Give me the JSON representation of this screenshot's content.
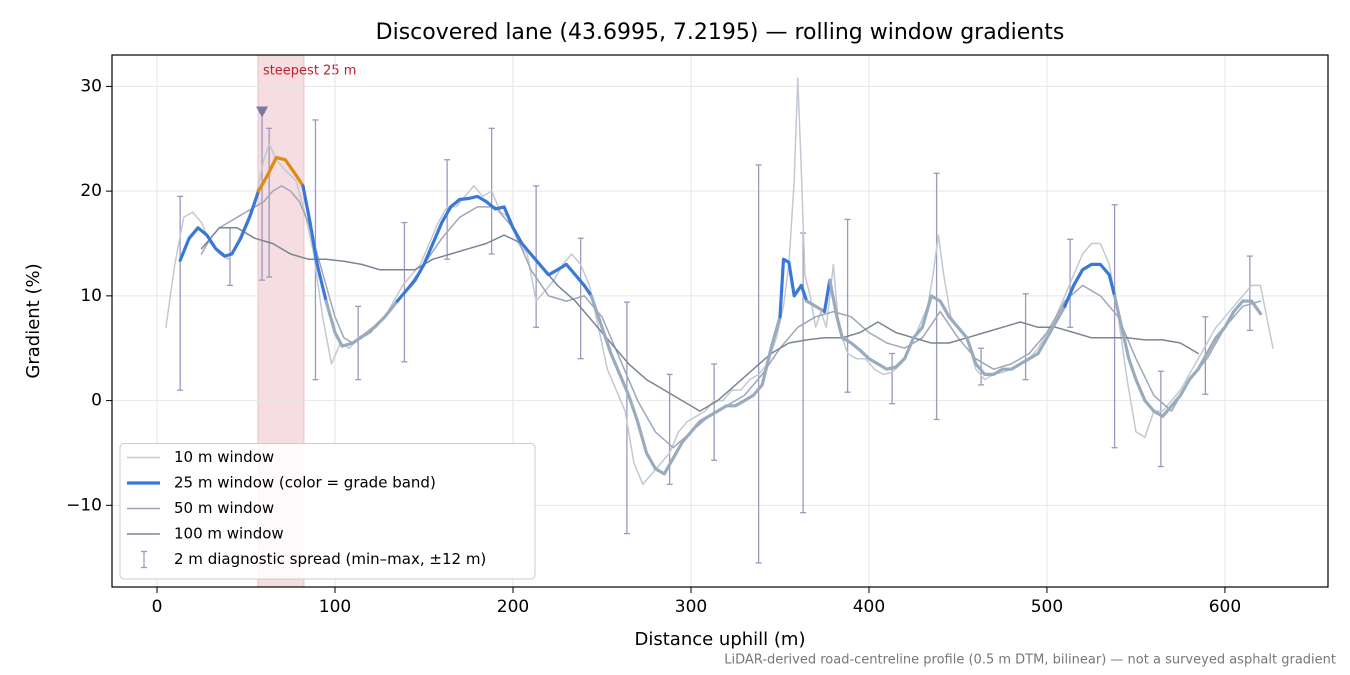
{
  "chart_data": {
    "type": "line",
    "title": "Discovered lane (43.6995, 7.2195) — rolling window gradients",
    "xlabel": "Distance uphill (m)",
    "ylabel": "Gradient (%)",
    "note": "LiDAR-derived road-centreline profile (0.5 m DTM, bilinear) — not a surveyed asphalt gradient",
    "xlim": [
      -25.3,
      657.9
    ],
    "ylim": [
      -17.8,
      33.0
    ],
    "xticks": [
      0,
      100,
      200,
      300,
      400,
      500,
      600
    ],
    "yticks": [
      {
        "value": -10,
        "label": "−10"
      },
      0,
      10,
      20,
      30
    ],
    "grid": true,
    "legend": "lower left",
    "highlight": {
      "label": "steepest 25 m",
      "x": [
        56.7,
        82.6
      ],
      "color": "#e8b4bc"
    },
    "marker": {
      "x": 59,
      "y": 27.6,
      "color": "#7a7aa0"
    },
    "series": [
      {
        "name": "10 m window",
        "color": "#c3c9d2",
        "width": 1.5,
        "x": [
          5,
          10,
          15,
          20,
          25,
          30,
          35,
          40,
          45,
          50,
          55,
          60,
          63,
          67,
          72,
          78,
          83,
          88,
          93,
          98,
          103,
          108,
          113,
          118,
          123,
          128,
          133,
          138,
          143,
          148,
          153,
          158,
          163,
          168,
          173,
          178,
          183,
          188,
          193,
          198,
          203,
          208,
          213,
          218,
          223,
          228,
          233,
          238,
          243,
          248,
          253,
          258,
          263,
          268,
          273,
          278,
          283,
          288,
          293,
          298,
          303,
          308,
          313,
          318,
          323,
          328,
          333,
          338,
          343,
          348,
          352,
          355,
          358,
          360,
          362,
          364,
          367,
          370,
          373,
          376,
          380,
          383,
          388,
          393,
          398,
          403,
          408,
          413,
          418,
          423,
          428,
          433,
          436,
          439,
          442,
          446,
          450,
          455,
          460,
          465,
          470,
          475,
          480,
          485,
          490,
          495,
          500,
          505,
          510,
          515,
          520,
          525,
          530,
          535,
          540,
          545,
          550,
          555,
          560,
          565,
          570,
          575,
          580,
          585,
          590,
          595,
          600,
          605,
          610,
          615,
          620,
          624,
          627
        ],
        "values": [
          7,
          13,
          17.5,
          18,
          17,
          15,
          14,
          13.5,
          15,
          17,
          19,
          23,
          24.5,
          23,
          22,
          21,
          18,
          14,
          8,
          3.5,
          5.5,
          5,
          6,
          6.5,
          7,
          8,
          9.5,
          11,
          12,
          13,
          15,
          17,
          18.5,
          18.5,
          19.5,
          20.5,
          19.5,
          20,
          18,
          17.5,
          15,
          14,
          9.5,
          10.5,
          11.5,
          13,
          14,
          13,
          11,
          7,
          3,
          1,
          -1,
          -6,
          -8,
          -7,
          -6,
          -5,
          -3,
          -2,
          -1.5,
          -1,
          0,
          0,
          1,
          1,
          2,
          2.5,
          3.5,
          6,
          9,
          13,
          21,
          30.8,
          22,
          12,
          10,
          7,
          8.5,
          7,
          13,
          7,
          4.5,
          4,
          4,
          3,
          2.5,
          2.7,
          3.5,
          5,
          7,
          9,
          12,
          15.8,
          12,
          8,
          7,
          6,
          3,
          2,
          2.5,
          2.7,
          3,
          3.5,
          4,
          5,
          6.5,
          8,
          10,
          12,
          14,
          15,
          15,
          13,
          8,
          2,
          -3,
          -3.5,
          -1,
          -1,
          0,
          1,
          2.5,
          4,
          5.5,
          7,
          8,
          9,
          10,
          11,
          11,
          7.5,
          5
        ]
      },
      {
        "name": "25 m window (color = grade band)",
        "color": "#3a78d8",
        "width": 3.2,
        "band_thresholds": [
          10,
          20
        ],
        "band_colors": [
          "#9aabbd",
          "#3a78d8",
          "#e08a10"
        ],
        "x": [
          13,
          18,
          23,
          28,
          33,
          38,
          42,
          47,
          52,
          57,
          62,
          67,
          72,
          77,
          82,
          86,
          90,
          95,
          100,
          104,
          110,
          116,
          122,
          128,
          135,
          140,
          145,
          150,
          155,
          160,
          165,
          170,
          175,
          180,
          185,
          190,
          195,
          200,
          205,
          210,
          215,
          220,
          225,
          230,
          235,
          240,
          244,
          250,
          255,
          260,
          265,
          270,
          275,
          280,
          285,
          290,
          295,
          300,
          305,
          310,
          315,
          320,
          325,
          330,
          335,
          340,
          345,
          350,
          352,
          355,
          358,
          362,
          365,
          370,
          375,
          378,
          382,
          385,
          390,
          395,
          400,
          405,
          410,
          415,
          420,
          425,
          430,
          435,
          440,
          445,
          450,
          455,
          460,
          465,
          470,
          475,
          480,
          485,
          490,
          495,
          500,
          505,
          510,
          515,
          520,
          525,
          530,
          535,
          538,
          542,
          546,
          550,
          555,
          560,
          565,
          570,
          575,
          580,
          585,
          590,
          595,
          600,
          605,
          610,
          615,
          620
        ],
        "values": [
          13.4,
          15.5,
          16.5,
          15.8,
          14.5,
          13.8,
          14,
          15.5,
          17.5,
          20,
          21.5,
          23.2,
          23,
          21.8,
          20.5,
          17,
          13,
          9.5,
          6.5,
          5.2,
          5.5,
          6.2,
          7,
          8,
          9.5,
          10.5,
          11.5,
          13,
          15,
          17,
          18.5,
          19.2,
          19.3,
          19.5,
          19,
          18.3,
          18.5,
          16.5,
          15,
          14,
          13,
          12,
          12.5,
          13,
          12,
          11,
          10,
          7,
          4.5,
          2.5,
          0.5,
          -2,
          -5,
          -6.5,
          -7,
          -5.5,
          -4,
          -3,
          -2,
          -1.5,
          -1,
          -0.5,
          -0.5,
          0,
          0.5,
          1.5,
          5,
          8,
          13.5,
          13.2,
          10,
          11,
          9.5,
          9,
          8.5,
          11.5,
          8,
          6,
          5.5,
          4.8,
          4,
          3.5,
          3,
          3.2,
          4,
          6,
          7,
          10,
          9.5,
          8,
          7,
          6,
          3.5,
          2.5,
          2.5,
          3,
          3,
          3.5,
          4,
          4.5,
          6,
          7.5,
          9,
          11,
          12.5,
          13,
          13,
          12,
          10,
          7,
          4,
          2,
          0,
          -1,
          -1.5,
          -0.5,
          0.5,
          2,
          3,
          4.5,
          6,
          7,
          8.5,
          9.5,
          9.5,
          8.3
        ]
      },
      {
        "name": "50 m window",
        "color": "#9ea6b8",
        "width": 1.5,
        "x": [
          25,
          30,
          35,
          40,
          45,
          50,
          55,
          60,
          65,
          70,
          75,
          80,
          85,
          90,
          95,
          100,
          105,
          110,
          115,
          120,
          125,
          130,
          140,
          150,
          160,
          170,
          180,
          190,
          200,
          210,
          220,
          230,
          240,
          250,
          260,
          270,
          280,
          290,
          300,
          310,
          320,
          330,
          340,
          350,
          360,
          370,
          380,
          390,
          400,
          410,
          420,
          430,
          440,
          450,
          460,
          470,
          480,
          490,
          500,
          510,
          520,
          530,
          540,
          550,
          560,
          570,
          580,
          590,
          600,
          610,
          620
        ],
        "values": [
          14,
          15.5,
          16.5,
          17,
          17.5,
          18,
          18.5,
          19,
          20,
          20.5,
          20,
          19,
          17,
          14,
          11,
          8,
          6,
          5.5,
          6,
          6.5,
          7.5,
          8.5,
          10.5,
          13,
          15.5,
          17.5,
          18.5,
          18.5,
          16.5,
          12.5,
          10,
          9.5,
          10,
          8,
          4,
          0,
          -3,
          -4.5,
          -3,
          -1.5,
          -0.5,
          0.5,
          2.5,
          5,
          7,
          8,
          8.5,
          8,
          6.5,
          5.5,
          5,
          6,
          8.5,
          6,
          4,
          3,
          3.5,
          4.5,
          6.5,
          9.5,
          11,
          10,
          8,
          4,
          0.5,
          -1,
          2,
          4,
          7,
          9,
          9.5
        ]
      },
      {
        "name": "100 m window",
        "color": "#7a8494",
        "width": 1.5,
        "x": [
          25,
          35,
          45,
          55,
          65,
          75,
          85,
          95,
          105,
          115,
          125,
          135,
          145,
          155,
          165,
          175,
          185,
          195,
          205,
          215,
          225,
          235,
          245,
          255,
          265,
          275,
          285,
          295,
          305,
          315,
          325,
          335,
          345,
          355,
          365,
          375,
          385,
          395,
          405,
          415,
          425,
          435,
          445,
          455,
          465,
          475,
          485,
          495,
          505,
          515,
          525,
          535,
          545,
          555,
          565,
          575,
          585
        ],
        "values": [
          14.5,
          16.5,
          16.5,
          15.5,
          15,
          14,
          13.5,
          13.5,
          13.3,
          13,
          12.5,
          12.5,
          12.5,
          13.5,
          14,
          14.5,
          15,
          15.8,
          15,
          13,
          11,
          9.5,
          7.5,
          5.5,
          3.5,
          2,
          1,
          0,
          -1,
          0,
          1.5,
          3,
          4.5,
          5.5,
          5.8,
          6,
          6,
          6.5,
          7.5,
          6.5,
          6,
          5.5,
          5.5,
          6,
          6.5,
          7,
          7.5,
          7,
          7,
          6.5,
          6,
          6,
          6,
          5.8,
          5.8,
          5.5,
          4.5
        ]
      }
    ],
    "errorbars": {
      "name": "2 m diagnostic spread (min–max, ±12 m)",
      "color": "#9a9ac0",
      "x": [
        13,
        41,
        59,
        63,
        89,
        113,
        139,
        163,
        188,
        213,
        238,
        264,
        288,
        313,
        338,
        363,
        388,
        413,
        438,
        463,
        488,
        513,
        538,
        564,
        589,
        614
      ],
      "low": [
        1,
        11,
        11.5,
        11.8,
        2,
        2,
        3.7,
        13.5,
        14,
        7,
        4,
        -12.7,
        -8,
        -5.7,
        -15.5,
        -10.7,
        0.8,
        -0.3,
        -1.8,
        1.5,
        2,
        7,
        -4.5,
        -6.3,
        0.6,
        6.7
      ],
      "high": [
        19.5,
        16.5,
        27.5,
        26,
        26.8,
        9,
        17,
        23,
        26,
        20.5,
        15.5,
        9.4,
        2.5,
        3.5,
        22.5,
        16,
        17.3,
        4.5,
        21.7,
        5,
        10.2,
        15.4,
        18.7,
        2.8,
        8,
        13.8
      ]
    }
  }
}
